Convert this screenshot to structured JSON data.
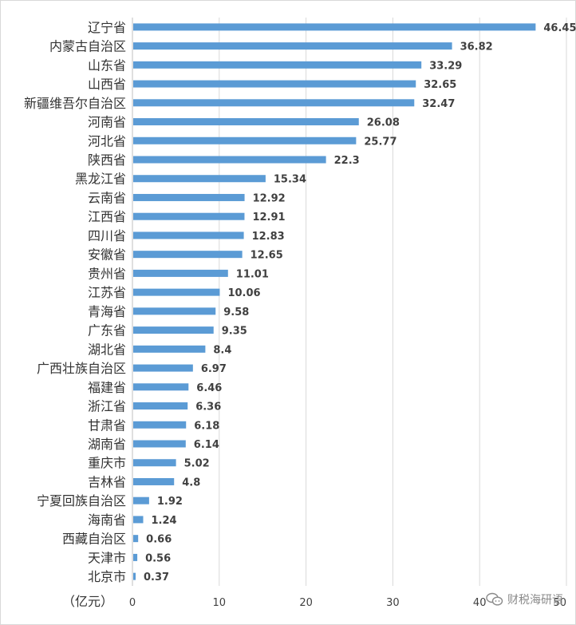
{
  "chart_data": {
    "type": "bar",
    "orientation": "horizontal",
    "categories": [
      "辽宁省",
      "内蒙古自治区",
      "山东省",
      "山西省",
      "新疆维吾尔自治区",
      "河南省",
      "河北省",
      "陕西省",
      "黑龙江省",
      "云南省",
      "江西省",
      "四川省",
      "安徽省",
      "贵州省",
      "江苏省",
      "青海省",
      "广东省",
      "湖北省",
      "广西壮族自治区",
      "福建省",
      "浙江省",
      "甘肃省",
      "湖南省",
      "重庆市",
      "吉林省",
      "宁夏回族自治区",
      "海南省",
      "西藏自治区",
      "天津市",
      "北京市"
    ],
    "values": [
      46.45,
      36.82,
      33.29,
      32.65,
      32.47,
      26.08,
      25.77,
      22.3,
      15.34,
      12.92,
      12.91,
      12.83,
      12.65,
      11.01,
      10.06,
      9.58,
      9.35,
      8.4,
      6.97,
      6.46,
      6.36,
      6.18,
      6.14,
      5.02,
      4.8,
      1.92,
      1.24,
      0.66,
      0.56,
      0.37
    ],
    "value_labels": [
      "46.45",
      "36.82",
      "33.29",
      "32.65",
      "32.47",
      "26.08",
      "25.77",
      "22.3",
      "15.34",
      "12.92",
      "12.91",
      "12.83",
      "12.65",
      "11.01",
      "10.06",
      "9.58",
      "9.35",
      "8.4",
      "6.97",
      "6.46",
      "6.36",
      "6.18",
      "6.14",
      "5.02",
      "4.8",
      "1.92",
      "1.24",
      "0.66",
      "0.56",
      "0.37"
    ],
    "highlight_category": "甘肃省",
    "xlim": [
      0,
      50
    ],
    "xticks": [
      "0",
      "10",
      "20",
      "30",
      "40",
      "50"
    ],
    "unit_label": "（亿元）",
    "grid": "vertical",
    "bar_color": "#5b9bd5",
    "highlight_color": "#e30000",
    "label_color": "#404040"
  },
  "watermark": {
    "text": "财税海研语"
  }
}
